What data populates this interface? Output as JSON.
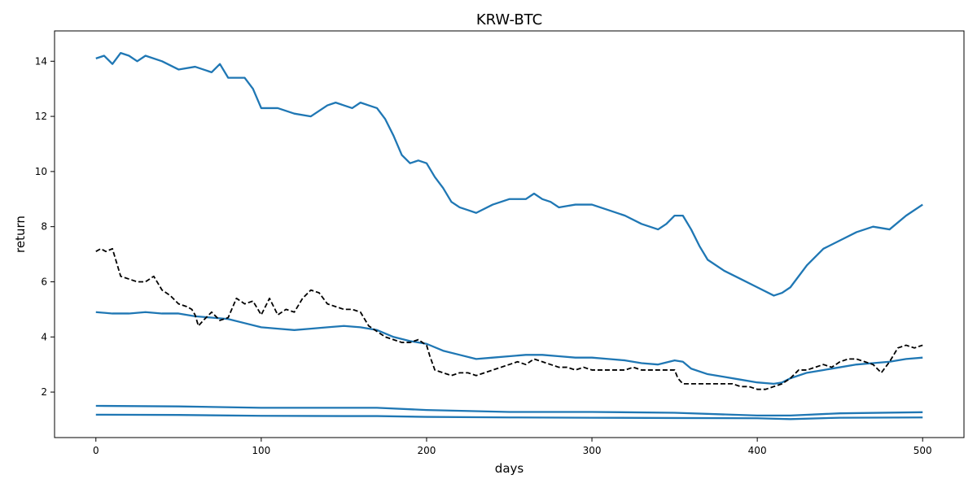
{
  "chart_data": {
    "type": "line",
    "title": "KRW-BTC",
    "xlabel": "days",
    "ylabel": "return",
    "xlim": [
      -25,
      525
    ],
    "ylim": [
      0.35,
      15.1
    ],
    "x_ticks": [
      0,
      100,
      200,
      300,
      400,
      500
    ],
    "y_ticks": [
      2,
      4,
      6,
      8,
      10,
      12,
      14
    ],
    "grid": false,
    "colors": {
      "series": "#1f77b4",
      "dashed": "#000000"
    },
    "series": [
      {
        "style": "solid",
        "x": [
          0,
          5,
          10,
          15,
          20,
          25,
          30,
          40,
          50,
          60,
          70,
          75,
          80,
          85,
          90,
          95,
          100,
          110,
          120,
          130,
          135,
          140,
          145,
          150,
          155,
          160,
          165,
          170,
          175,
          180,
          185,
          190,
          195,
          200,
          205,
          210,
          215,
          220,
          225,
          230,
          240,
          250,
          260,
          265,
          270,
          275,
          280,
          290,
          300,
          310,
          320,
          330,
          340,
          345,
          350,
          355,
          360,
          365,
          370,
          380,
          390,
          400,
          410,
          415,
          420,
          430,
          440,
          450,
          460,
          470,
          480,
          490,
          500
        ],
        "y": [
          14.1,
          14.2,
          13.9,
          14.3,
          14.2,
          14.0,
          14.2,
          14.0,
          13.7,
          13.8,
          13.6,
          13.9,
          13.4,
          13.4,
          13.4,
          13.0,
          12.3,
          12.3,
          12.1,
          12.0,
          12.2,
          12.4,
          12.5,
          12.4,
          12.3,
          12.5,
          12.4,
          12.3,
          11.9,
          11.3,
          10.6,
          10.3,
          10.4,
          10.3,
          9.8,
          9.4,
          8.9,
          8.7,
          8.6,
          8.5,
          8.8,
          9.0,
          9.0,
          9.2,
          9.0,
          8.9,
          8.7,
          8.8,
          8.8,
          8.6,
          8.4,
          8.1,
          7.9,
          8.1,
          8.4,
          8.4,
          7.9,
          7.3,
          6.8,
          6.4,
          6.1,
          5.8,
          5.5,
          5.6,
          5.8,
          6.6,
          7.2,
          7.5,
          7.8,
          8.0,
          7.9,
          8.4,
          8.8
        ]
      },
      {
        "style": "solid",
        "x": [
          0,
          10,
          20,
          30,
          40,
          50,
          60,
          70,
          80,
          90,
          100,
          110,
          120,
          130,
          140,
          150,
          160,
          170,
          180,
          190,
          200,
          210,
          220,
          230,
          240,
          250,
          260,
          270,
          280,
          290,
          300,
          310,
          320,
          330,
          340,
          350,
          355,
          360,
          370,
          380,
          390,
          400,
          410,
          415,
          420,
          430,
          440,
          450,
          460,
          470,
          480,
          490,
          500
        ],
        "y": [
          4.9,
          4.85,
          4.85,
          4.9,
          4.85,
          4.85,
          4.75,
          4.7,
          4.65,
          4.5,
          4.35,
          4.3,
          4.25,
          4.3,
          4.35,
          4.4,
          4.35,
          4.25,
          4.0,
          3.85,
          3.75,
          3.5,
          3.35,
          3.2,
          3.25,
          3.3,
          3.35,
          3.35,
          3.3,
          3.25,
          3.25,
          3.2,
          3.15,
          3.05,
          3.0,
          3.15,
          3.1,
          2.85,
          2.65,
          2.55,
          2.45,
          2.35,
          2.3,
          2.35,
          2.5,
          2.7,
          2.8,
          2.9,
          3.0,
          3.05,
          3.1,
          3.2,
          3.25
        ]
      },
      {
        "style": "solid",
        "x": [
          0,
          50,
          100,
          150,
          170,
          200,
          250,
          300,
          350,
          400,
          420,
          450,
          500
        ],
        "y": [
          1.5,
          1.48,
          1.43,
          1.43,
          1.43,
          1.35,
          1.28,
          1.28,
          1.25,
          1.15,
          1.15,
          1.23,
          1.27
        ]
      },
      {
        "style": "solid",
        "x": [
          0,
          50,
          100,
          150,
          170,
          200,
          250,
          300,
          350,
          400,
          420,
          450,
          500
        ],
        "y": [
          1.18,
          1.17,
          1.14,
          1.13,
          1.13,
          1.1,
          1.08,
          1.07,
          1.06,
          1.05,
          1.02,
          1.07,
          1.08
        ]
      },
      {
        "style": "dashed",
        "x": [
          0,
          3,
          6,
          10,
          12,
          15,
          20,
          25,
          30,
          35,
          40,
          45,
          50,
          55,
          58,
          60,
          62,
          65,
          70,
          75,
          80,
          85,
          90,
          95,
          100,
          105,
          110,
          115,
          120,
          125,
          130,
          135,
          140,
          145,
          150,
          155,
          160,
          165,
          170,
          175,
          180,
          185,
          190,
          195,
          200,
          202,
          205,
          210,
          215,
          220,
          225,
          230,
          235,
          240,
          245,
          250,
          255,
          260,
          265,
          270,
          275,
          280,
          285,
          290,
          295,
          300,
          305,
          310,
          315,
          320,
          325,
          330,
          335,
          340,
          345,
          350,
          352,
          355,
          360,
          365,
          370,
          375,
          380,
          385,
          390,
          395,
          400,
          405,
          410,
          415,
          420,
          425,
          430,
          435,
          440,
          445,
          450,
          455,
          460,
          465,
          470,
          475,
          480,
          485,
          490,
          495,
          500
        ],
        "y": [
          7.1,
          7.2,
          7.1,
          7.2,
          6.8,
          6.2,
          6.1,
          6.0,
          6.0,
          6.2,
          5.7,
          5.5,
          5.2,
          5.1,
          5.0,
          4.8,
          4.4,
          4.6,
          4.9,
          4.6,
          4.7,
          5.4,
          5.2,
          5.3,
          4.8,
          5.4,
          4.8,
          5.0,
          4.9,
          5.4,
          5.7,
          5.6,
          5.2,
          5.1,
          5.0,
          5.0,
          4.9,
          4.4,
          4.2,
          4.0,
          3.9,
          3.8,
          3.8,
          3.9,
          3.7,
          3.3,
          2.8,
          2.7,
          2.6,
          2.7,
          2.7,
          2.6,
          2.7,
          2.8,
          2.9,
          3.0,
          3.1,
          3.0,
          3.2,
          3.1,
          3.0,
          2.9,
          2.9,
          2.8,
          2.9,
          2.8,
          2.8,
          2.8,
          2.8,
          2.8,
          2.9,
          2.8,
          2.8,
          2.8,
          2.8,
          2.8,
          2.5,
          2.3,
          2.3,
          2.3,
          2.3,
          2.3,
          2.3,
          2.3,
          2.2,
          2.2,
          2.1,
          2.1,
          2.2,
          2.3,
          2.5,
          2.8,
          2.8,
          2.9,
          3.0,
          2.9,
          3.1,
          3.2,
          3.2,
          3.1,
          3.0,
          2.7,
          3.1,
          3.6,
          3.7,
          3.6,
          3.7
        ]
      }
    ]
  }
}
